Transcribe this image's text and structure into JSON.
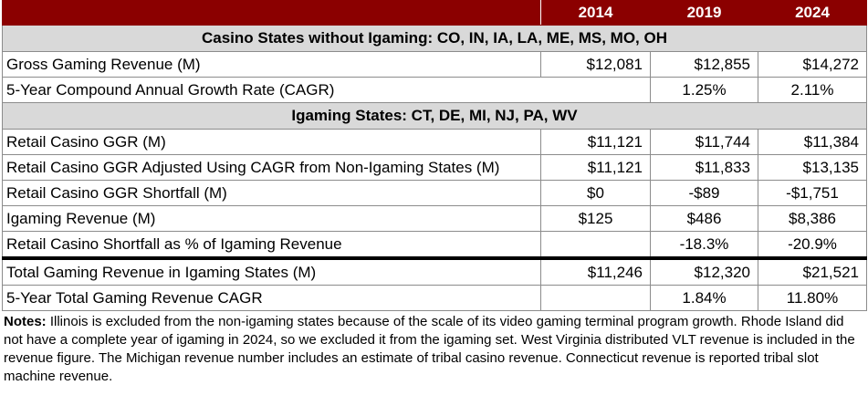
{
  "header": {
    "years": [
      "2014",
      "2019",
      "2024"
    ]
  },
  "section1": {
    "title": "Casino States without Igaming: CO, IN, IA, LA, ME, MS, MO, OH",
    "rows": [
      {
        "label": "Gross Gaming Revenue (M)",
        "v2014": "$12,081",
        "v2019": "$12,855",
        "v2024": "$14,272"
      },
      {
        "label": "5-Year Compound Annual Growth Rate (CAGR)",
        "v2014": "",
        "v2019": "1.25%",
        "v2024": "2.11%"
      }
    ]
  },
  "section2": {
    "title": "Igaming States: CT, DE, MI, NJ, PA, WV",
    "rows": [
      {
        "label": "Retail Casino GGR (M)",
        "v2014": "$11,121",
        "v2019": "$11,744",
        "v2024": "$11,384"
      },
      {
        "label": "Retail Casino GGR Adjusted Using CAGR from Non-Igaming States (M)",
        "v2014": "$11,121",
        "v2019": "$11,833",
        "v2024": "$13,135"
      },
      {
        "label": "Retail Casino GGR Shortfall (M)",
        "v2014": "$0",
        "v2019": "-$89",
        "v2024": "-$1,751"
      },
      {
        "label": "Igaming Revenue (M)",
        "v2014": "$125",
        "v2019": "$486",
        "v2024": "$8,386"
      },
      {
        "label": "Retail Casino Shortfall as % of Igaming Revenue",
        "v2014": "",
        "v2019": "-18.3%",
        "v2024": "-20.9%"
      }
    ]
  },
  "totals": {
    "rows": [
      {
        "label": "Total Gaming Revenue in Igaming States (M)",
        "v2014": "$11,246",
        "v2019": "$12,320",
        "v2024": "$21,521"
      },
      {
        "label": "5-Year Total Gaming Revenue CAGR",
        "v2014": "",
        "v2019": "1.84%",
        "v2024": "11.80%"
      }
    ]
  },
  "notes": {
    "label": "Notes:",
    "text": " Illinois is excluded from the non-igaming states because of the scale of its video gaming terminal program growth. Rhode Island did not have a complete year of igaming in 2024, so we excluded it from the igaming set. West Virginia distributed VLT revenue is included in the revenue figure. The Michigan revenue number includes an estimate of tribal casino revenue. Connecticut revenue is reported tribal slot machine revenue."
  }
}
